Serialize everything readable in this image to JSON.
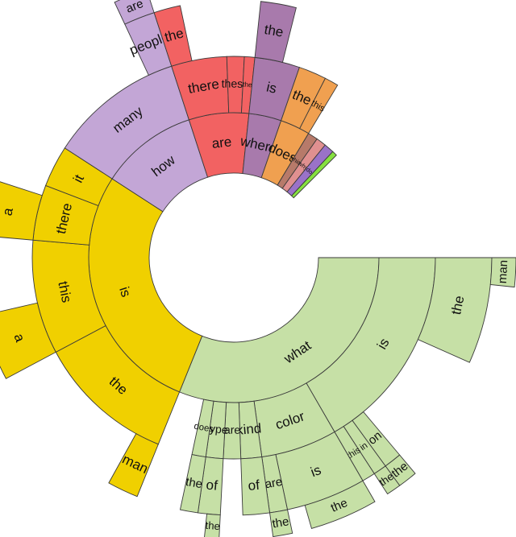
{
  "chart_data": {
    "type": "sunburst",
    "colors": {
      "what": "#c6e0a6",
      "is": "#f0d000",
      "how": "#c3a6d6",
      "are": "#f26262",
      "where": "#a87aac",
      "does": "#f0a050",
      "which": "#b77a6a",
      "why": "#e09090",
      "do": "#9a72c8",
      "other": "#86e040"
    },
    "rings": [
      {
        "key": "what",
        "label": "what",
        "start": 90,
        "sweep": 112,
        "children": [
          {
            "label": "is",
            "start": 90,
            "sweep": 60,
            "children": [
              {
                "label": "the",
                "start": 90,
                "sweep": 24,
                "children": [
                  {
                    "label": "man",
                    "start": 90,
                    "sweep": 6
                  }
                ]
              },
              {
                "label": "on",
                "start": 140,
                "sweep": 4,
                "children": [
                  {
                    "label": "the",
                    "start": 140,
                    "sweep": 4
                  }
                ]
              },
              {
                "label": "in",
                "start": 144,
                "sweep": 3,
                "children": [
                  {
                    "label": "the",
                    "start": 144,
                    "sweep": 3
                  }
                ]
              },
              {
                "label": "this",
                "start": 147,
                "sweep": 3
              }
            ]
          },
          {
            "label": "color",
            "start": 150,
            "sweep": 22,
            "children": [
              {
                "label": "is",
                "start": 150,
                "sweep": 18,
                "children": [
                  {
                    "label": "the",
                    "start": 150,
                    "sweep": 14
                  }
                ]
              },
              {
                "label": "are",
                "start": 168,
                "sweep": 4,
                "children": [
                  {
                    "label": "the",
                    "start": 168,
                    "sweep": 4
                  }
                ]
              }
            ]
          },
          {
            "label": "kind",
            "start": 172,
            "sweep": 6,
            "children": [
              {
                "label": "of",
                "start": 172,
                "sweep": 6
              }
            ]
          },
          {
            "label": "are",
            "start": 178,
            "sweep": 5
          },
          {
            "label": "type",
            "start": 183,
            "sweep": 5,
            "children": [
              {
                "label": "of",
                "start": 183,
                "sweep": 5,
                "children": [
                  {
                    "label": "the",
                    "start": 183,
                    "sweep": 3
                  }
                ]
              }
            ]
          },
          {
            "label": "does",
            "start": 188,
            "sweep": 4,
            "children": [
              {
                "label": "the",
                "start": 188,
                "sweep": 4
              }
            ]
          }
        ]
      },
      {
        "key": "is",
        "label": "is",
        "start": 202,
        "sweep": 101,
        "children": [
          {
            "label": "the",
            "start": 202,
            "sweep": 40,
            "children": [
              {
                "label": "man",
                "start": 202,
                "sweep": 7
              }
            ]
          },
          {
            "label": "this",
            "start": 242,
            "sweep": 33,
            "children": [
              {
                "label": "a",
                "start": 242,
                "sweep": 15
              }
            ]
          },
          {
            "label": "there",
            "start": 275,
            "sweep": 16,
            "children": [
              {
                "label": "a",
                "start": 275,
                "sweep": 13
              }
            ]
          },
          {
            "label": "it",
            "start": 291,
            "sweep": 12
          }
        ]
      },
      {
        "key": "how",
        "label": "how",
        "start": 303,
        "sweep": 39,
        "children": [
          {
            "label": "many",
            "start": 303,
            "sweep": 39,
            "children": [
              {
                "label": "people",
                "start": 335,
                "sweep": 7,
                "children": [
                  {
                    "label": "are",
                    "start": 335,
                    "sweep": 7
                  }
                ]
              }
            ]
          }
        ]
      },
      {
        "key": "are",
        "label": "are",
        "start": 342,
        "sweep": 24,
        "children": [
          {
            "label": "there",
            "start": 342,
            "sweep": 16,
            "children": [
              {
                "label": "the",
                "start": 342,
                "sweep": 6
              }
            ]
          },
          {
            "label": "these",
            "start": 358,
            "sweep": 5
          },
          {
            "label": "the",
            "start": 363,
            "sweep": 3
          }
        ]
      },
      {
        "key": "where",
        "label": "where",
        "start": 366,
        "sweep": 13,
        "children": [
          {
            "label": "is",
            "start": 366,
            "sweep": 13,
            "children": [
              {
                "label": "the",
                "start": 366,
                "sweep": 8
              }
            ]
          }
        ]
      },
      {
        "key": "does",
        "label": "does",
        "start": 379,
        "sweep": 12,
        "children": [
          {
            "label": "the",
            "start": 379,
            "sweep": 8
          },
          {
            "label": "this",
            "start": 387,
            "sweep": 4
          }
        ]
      },
      {
        "key": "which",
        "label": "which",
        "start": 391,
        "sweep": 4
      },
      {
        "key": "why",
        "label": "why",
        "start": 395,
        "sweep": 4
      },
      {
        "key": "do",
        "label": "do",
        "start": 399,
        "sweep": 4
      },
      {
        "key": "other",
        "label": "",
        "start": 403,
        "sweep": 2
      }
    ]
  }
}
